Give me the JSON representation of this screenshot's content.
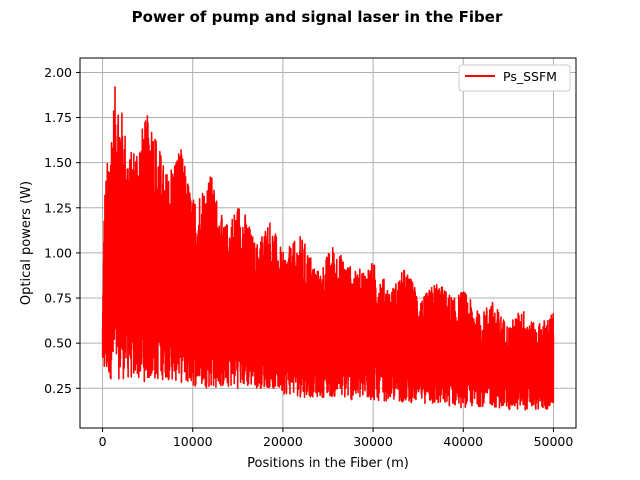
{
  "chart_data": {
    "type": "line",
    "title": "Power of pump and signal laser in the Fiber",
    "xlabel": "Positions in the Fiber (m)",
    "ylabel": "Optical powers (W)",
    "xlim": [
      -2500,
      52500
    ],
    "ylim": [
      0.03,
      2.08
    ],
    "grid": true,
    "legend_position": "top-right",
    "xticks": [
      0,
      10000,
      20000,
      30000,
      40000,
      50000
    ],
    "yticks": [
      0.25,
      0.5,
      0.75,
      1.0,
      1.25,
      1.5,
      1.75,
      2.0
    ],
    "xtick_labels": [
      "0",
      "10000",
      "20000",
      "30000",
      "40000",
      "50000"
    ],
    "ytick_labels": [
      "0.25",
      "0.50",
      "0.75",
      "1.00",
      "1.25",
      "1.50",
      "1.75",
      "2.00"
    ],
    "series": [
      {
        "name": "Ps_SSFM",
        "color": "#ff0000",
        "x_range": [
          0,
          50000
        ],
        "envelope_x": [
          0,
          200,
          1500,
          3000,
          5300,
          7000,
          8600,
          10000,
          12000,
          13500,
          15300,
          17000,
          18500,
          20000,
          22000,
          24000,
          25500,
          28000,
          30000,
          32000,
          33500,
          35500,
          37000,
          39000,
          40000,
          42000,
          43000,
          45000,
          46500,
          48000,
          49500,
          50000
        ],
        "upper": [
          0.62,
          1.35,
          1.98,
          1.55,
          1.8,
          1.45,
          1.6,
          1.3,
          1.45,
          1.15,
          1.3,
          1.05,
          1.2,
          1.0,
          1.1,
          0.9,
          1.05,
          0.9,
          0.95,
          0.8,
          0.92,
          0.75,
          0.85,
          0.75,
          0.8,
          0.65,
          0.75,
          0.6,
          0.7,
          0.6,
          0.65,
          0.68
        ],
        "lower": [
          0.4,
          0.3,
          0.3,
          0.3,
          0.28,
          0.3,
          0.28,
          0.26,
          0.25,
          0.25,
          0.25,
          0.25,
          0.25,
          0.22,
          0.2,
          0.2,
          0.2,
          0.18,
          0.18,
          0.18,
          0.17,
          0.17,
          0.15,
          0.15,
          0.14,
          0.15,
          0.15,
          0.13,
          0.13,
          0.13,
          0.13,
          0.15
        ]
      }
    ]
  }
}
